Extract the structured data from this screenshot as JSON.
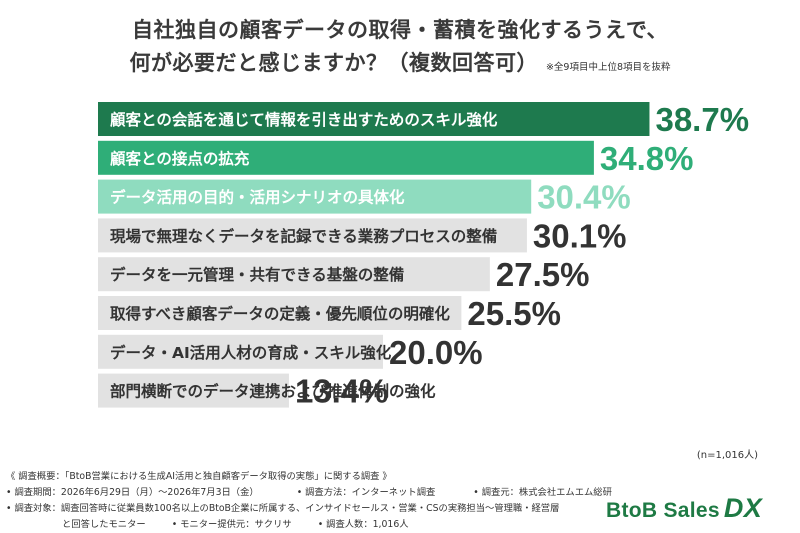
{
  "header": {
    "title_line1": "自社独自の顧客データの取得・蓄積を強化するうえで、",
    "title_line2": "何が必要だと感じますか？（複数回答可）",
    "title_note": "※全9項目中上位8項目を抜粋"
  },
  "chart_data": {
    "type": "bar",
    "orientation": "horizontal",
    "categories": [
      "顧客との会話を通じて情報を引き出すためのスキル強化",
      "顧客との接点の拡充",
      "データ活用の目的・活用シナリオの具体化",
      "現場で無理なくデータを記録できる業務プロセスの整備",
      "データを一元管理・共有できる基盤の整備",
      "取得すべき顧客データの定義・優先順位の明確化",
      "データ・AI活用人材の育成・スキル強化",
      "部門横断でのデータ連携および推進体制の強化"
    ],
    "values": [
      38.7,
      34.8,
      30.4,
      30.1,
      27.5,
      25.5,
      20.0,
      13.4
    ],
    "value_labels": [
      "38.7%",
      "34.8%",
      "30.4%",
      "30.1%",
      "27.5%",
      "25.5%",
      "20.0%",
      "13.4%"
    ],
    "bar_colors": [
      "#1e7a4e",
      "#2fae78",
      "#8fdcbf",
      "#e2e2e2",
      "#e2e2e2",
      "#e2e2e2",
      "#e2e2e2",
      "#e2e2e2"
    ],
    "label_colors": [
      "#ffffff",
      "#ffffff",
      "#ffffff",
      "#333333",
      "#333333",
      "#333333",
      "#333333",
      "#333333"
    ],
    "value_colors": [
      "#1e7a4e",
      "#2fae78",
      "#8fdcbf",
      "#333333",
      "#333333",
      "#333333",
      "#333333",
      "#333333"
    ],
    "sample_size": "(n=1,016人)"
  },
  "footer": {
    "line1": "《 調査概要：「BtoB営業における生成AI活用と独自顧客データ取得の実態」に関する調査 》",
    "period": "• 調査期間：2026年6月29日（月）〜2026年7月3日（金）",
    "method": "• 調査方法：インターネット調査",
    "source": "• 調査元：株式会社エムエム総研",
    "target": "• 調査対象：調査回答時に従業員数100名以上のBtoB企業に所属する、インサイドセールス・営業・CSの実務担当〜管理職・経営層",
    "target2": "と回答したモニター",
    "provider": "• モニター提供元：サクリサ",
    "count": "• 調査人数：1,016人"
  },
  "logo": {
    "text": "BtoB Sales",
    "accent": "DX"
  }
}
